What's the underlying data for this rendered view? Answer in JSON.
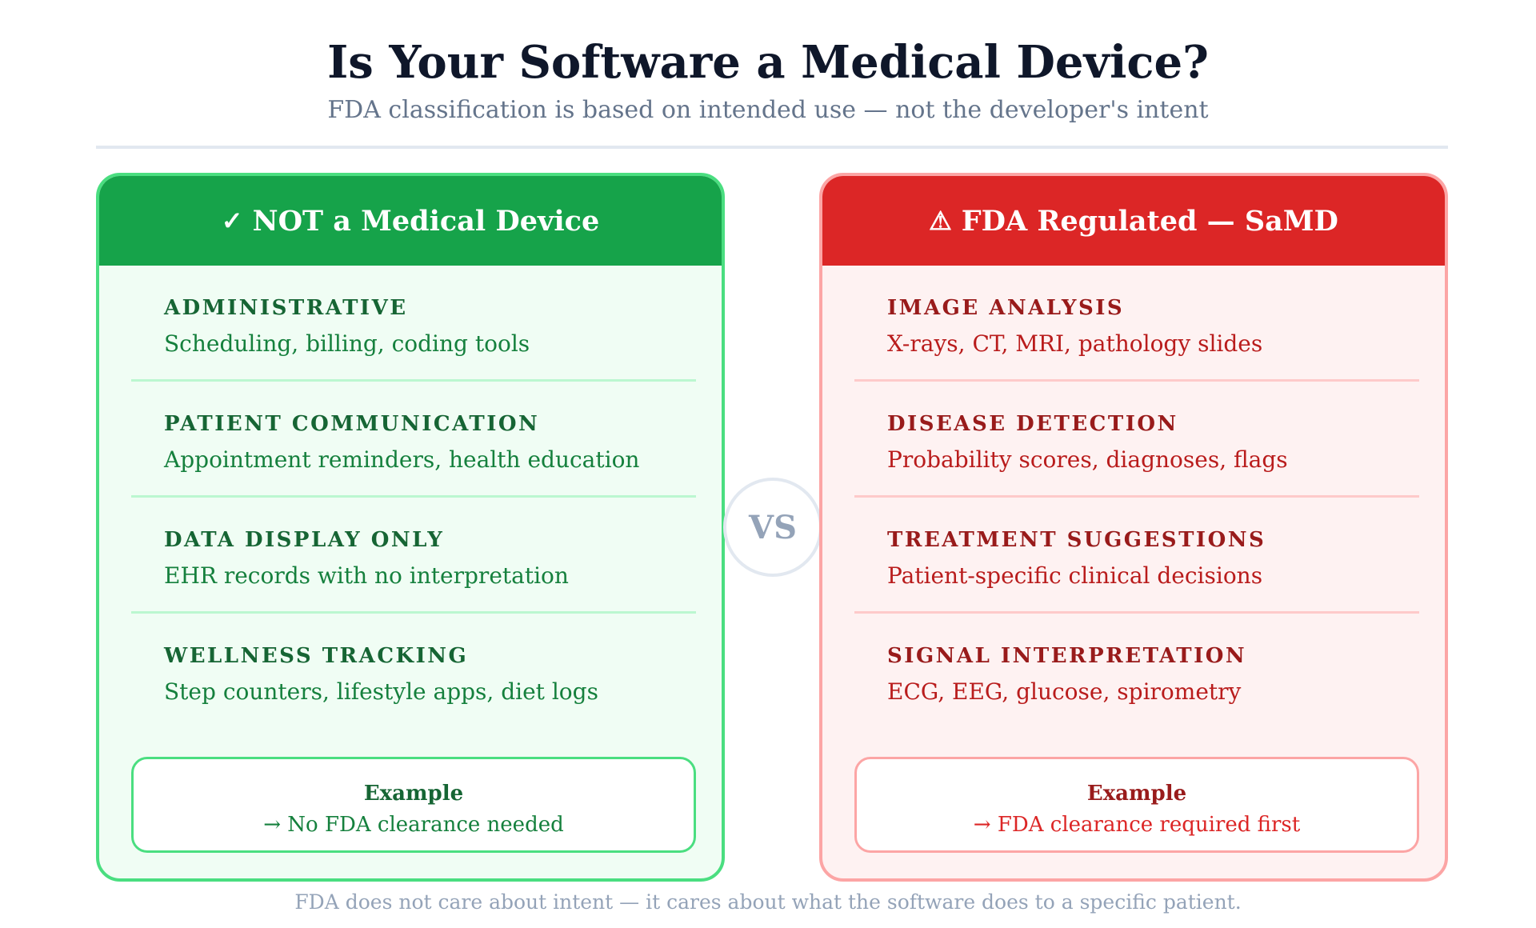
{
  "title": "Is Your Software a Medical Device?",
  "subtitle": "FDA classification is based on intended use — not the developer's intent",
  "left": {
    "icon": "check-icon",
    "icon_glyph": "✓",
    "heading": "NOT a Medical Device",
    "color": "#16a34a",
    "items": [
      {
        "label": "ADMINISTRATIVE",
        "desc": "Scheduling, billing, coding tools"
      },
      {
        "label": "PATIENT COMMUNICATION",
        "desc": "Appointment reminders, health education"
      },
      {
        "label": "DATA DISPLAY ONLY",
        "desc": "EHR records with no interpretation"
      },
      {
        "label": "WELLNESS TRACKING",
        "desc": "Step counters, lifestyle apps, diet logs"
      }
    ],
    "example": {
      "title": "Example",
      "text": "→ No FDA clearance needed"
    }
  },
  "right": {
    "icon": "warning-icon",
    "icon_glyph": "⚠",
    "heading": "FDA Regulated — SaMD",
    "color": "#dc2626",
    "items": [
      {
        "label": "IMAGE ANALYSIS",
        "desc": "X-rays, CT, MRI, pathology slides"
      },
      {
        "label": "DISEASE DETECTION",
        "desc": "Probability scores, diagnoses, flags"
      },
      {
        "label": "TREATMENT SUGGESTIONS",
        "desc": "Patient-specific clinical decisions"
      },
      {
        "label": "SIGNAL INTERPRETATION",
        "desc": "ECG, EEG, glucose, spirometry"
      }
    ],
    "example": {
      "title": "Example",
      "text": "→ FDA clearance required first"
    }
  },
  "vs_label": "VS",
  "footer": "FDA does not care about intent — it cares about what the software does to a specific patient."
}
